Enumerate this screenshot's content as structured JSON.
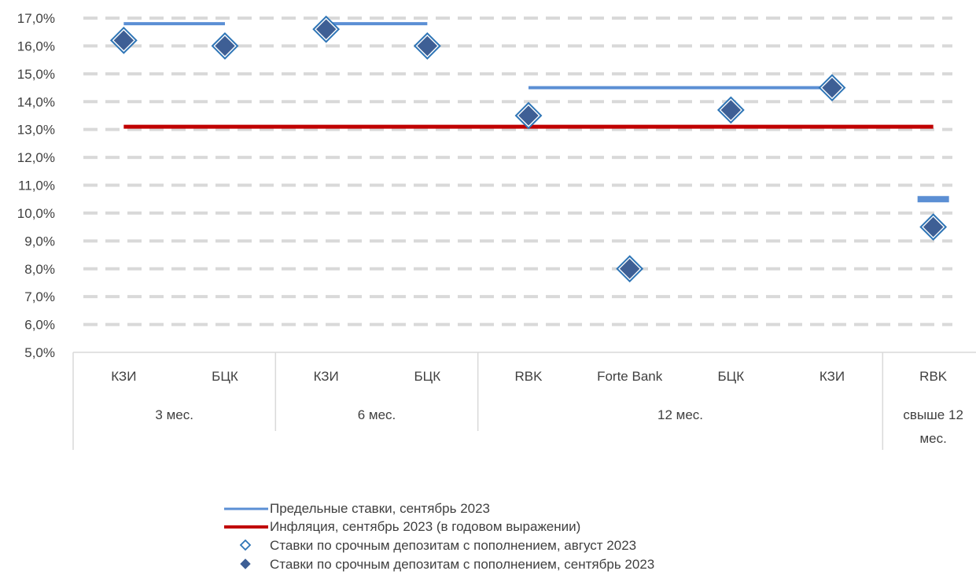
{
  "chart_data": {
    "type": "scatter",
    "title": "",
    "xlabel": "",
    "ylabel": "",
    "ylim": [
      5,
      17
    ],
    "y_ticks": [
      "5,0%",
      "6,0%",
      "7,0%",
      "8,0%",
      "9,0%",
      "10,0%",
      "11,0%",
      "12,0%",
      "13,0%",
      "14,0%",
      "15,0%",
      "16,0%",
      "17,0%"
    ],
    "grid": "horizontal dashed",
    "legend_position": "bottom",
    "categories": [
      "КЗИ",
      "БЦК",
      "КЗИ",
      "БЦК",
      "RBK",
      "Forte Bank",
      "БЦК",
      "КЗИ",
      "RBK"
    ],
    "groups": [
      {
        "label": "3 мес.",
        "label_lines": [
          "3 мес."
        ],
        "span": [
          0,
          1
        ]
      },
      {
        "label": "6 мес.",
        "label_lines": [
          "6 мес."
        ],
        "span": [
          2,
          3
        ]
      },
      {
        "label": "12 мес.",
        "label_lines": [
          "12 мес."
        ],
        "span": [
          4,
          7
        ]
      },
      {
        "label": "свыше 12 мес.",
        "label_lines": [
          "свыше 12",
          "мес."
        ],
        "span": [
          8,
          8
        ]
      }
    ],
    "series": [
      {
        "name": "Предельные ставки, сентябрь 2023",
        "kind": "line",
        "color": "#5B8FD4",
        "segments": [
          {
            "from": 0,
            "to": 1,
            "value": 16.8
          },
          {
            "from": 2,
            "to": 3,
            "value": 16.8
          },
          {
            "from": 4,
            "to": 7,
            "value": 14.5
          },
          {
            "from": 8,
            "to": 8,
            "value": 10.5
          }
        ]
      },
      {
        "name": "Инфляция, сентябрь 2023 (в годовом выражении)",
        "kind": "line",
        "color": "#C00000",
        "value": 13.1
      },
      {
        "name": "Ставки по срочным депозитам с пополнением, август 2023",
        "kind": "marker",
        "marker": "diamond-open",
        "color": "#2E75B6",
        "values": [
          16.2,
          16.0,
          16.6,
          16.0,
          13.5,
          8.0,
          13.7,
          14.5,
          9.5
        ]
      },
      {
        "name": "Ставки по срочным депозитам с пополнением, сентябрь 2023",
        "kind": "marker",
        "marker": "diamond-filled",
        "color": "#3E5F95",
        "values": [
          16.2,
          16.0,
          16.6,
          16.0,
          13.5,
          8.0,
          13.7,
          14.5,
          9.5
        ]
      }
    ]
  }
}
